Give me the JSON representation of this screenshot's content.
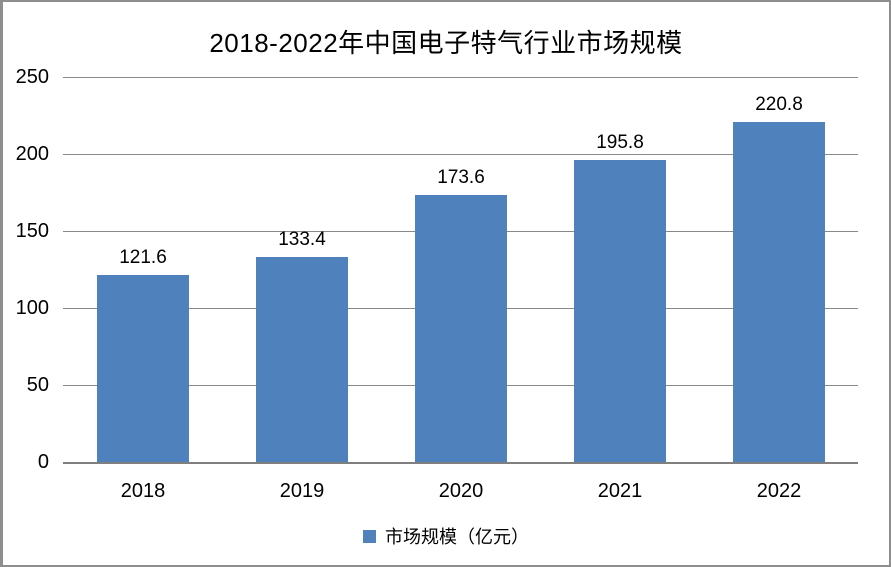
{
  "window": {
    "background": "#ffffff",
    "border_color": "#8e8e8e"
  },
  "chart_data": {
    "type": "bar",
    "title": "2018-2022年中国电子特气行业市场规模",
    "categories": [
      "2018",
      "2019",
      "2020",
      "2021",
      "2022"
    ],
    "series": [
      {
        "name": "市场规模（亿元）",
        "values": [
          121.6,
          133.4,
          173.6,
          195.8,
          220.8
        ]
      }
    ],
    "data_labels": [
      "121.6",
      "133.4",
      "173.6",
      "195.8",
      "220.8"
    ],
    "xlabel": "",
    "ylabel": "",
    "ylim": [
      0,
      250
    ],
    "yticks": [
      0,
      50,
      100,
      150,
      200,
      250
    ],
    "grid": true,
    "legend_position": "bottom",
    "colors": {
      "bar": "#4F81BD",
      "gridline": "#898989",
      "axis_line": "#7F7F7F",
      "text": "#000000"
    }
  }
}
